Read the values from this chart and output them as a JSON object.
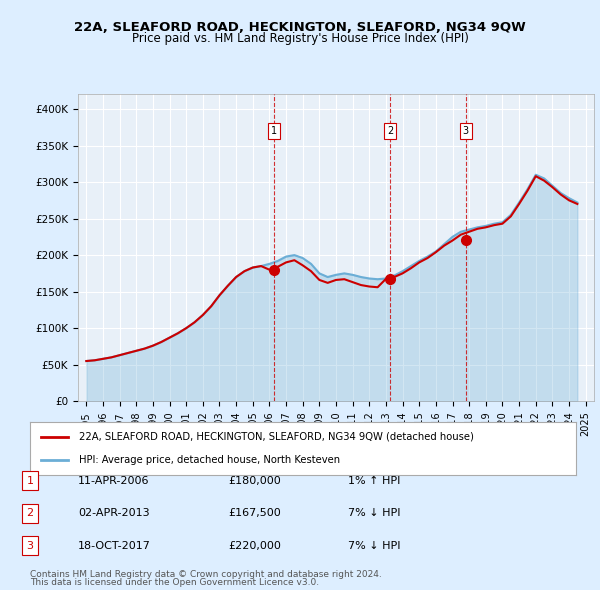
{
  "title": "22A, SLEAFORD ROAD, HECKINGTON, SLEAFORD, NG34 9QW",
  "subtitle": "Price paid vs. HM Land Registry's House Price Index (HPI)",
  "property_label": "22A, SLEAFORD ROAD, HECKINGTON, SLEAFORD, NG34 9QW (detached house)",
  "hpi_label": "HPI: Average price, detached house, North Kesteven",
  "footer1": "Contains HM Land Registry data © Crown copyright and database right 2024.",
  "footer2": "This data is licensed under the Open Government Licence v3.0.",
  "transactions": [
    {
      "num": 1,
      "date": "11-APR-2006",
      "price": 180000,
      "date_x": 2006.27,
      "rel": "1% ↑ HPI"
    },
    {
      "num": 2,
      "date": "02-APR-2013",
      "price": 167500,
      "date_x": 2013.25,
      "rel": "7% ↓ HPI"
    },
    {
      "num": 3,
      "date": "18-OCT-2017",
      "price": 220000,
      "date_x": 2017.8,
      "rel": "7% ↓ HPI"
    }
  ],
  "hpi_color": "#6baed6",
  "price_color": "#cc0000",
  "bg_color": "#ddeeff",
  "plot_bg": "#e8f0f8",
  "grid_color": "#ffffff",
  "marker_color": "#cc0000",
  "dashed_color": "#cc0000",
  "ylim": [
    0,
    420000
  ],
  "yticks": [
    0,
    50000,
    100000,
    150000,
    200000,
    250000,
    300000,
    350000,
    400000
  ],
  "xlim_start": 1994.5,
  "xlim_end": 2025.5,
  "hpi_data": {
    "years": [
      1995,
      1995.5,
      1996,
      1996.5,
      1997,
      1997.5,
      1998,
      1998.5,
      1999,
      1999.5,
      2000,
      2000.5,
      2001,
      2001.5,
      2002,
      2002.5,
      2003,
      2003.5,
      2004,
      2004.5,
      2005,
      2005.5,
      2006,
      2006.5,
      2007,
      2007.5,
      2008,
      2008.5,
      2009,
      2009.5,
      2010,
      2010.5,
      2011,
      2011.5,
      2012,
      2012.5,
      2013,
      2013.5,
      2014,
      2014.5,
      2015,
      2015.5,
      2016,
      2016.5,
      2017,
      2017.5,
      2018,
      2018.5,
      2019,
      2019.5,
      2020,
      2020.5,
      2021,
      2021.5,
      2022,
      2022.5,
      2023,
      2023.5,
      2024,
      2024.5
    ],
    "values": [
      55000,
      56000,
      58000,
      60000,
      63000,
      66000,
      69000,
      72000,
      76000,
      81000,
      87000,
      93000,
      100000,
      108000,
      118000,
      130000,
      145000,
      158000,
      170000,
      178000,
      183000,
      185000,
      188000,
      192000,
      198000,
      200000,
      196000,
      188000,
      175000,
      170000,
      173000,
      175000,
      173000,
      170000,
      168000,
      167000,
      168000,
      172000,
      178000,
      185000,
      192000,
      198000,
      205000,
      215000,
      225000,
      232000,
      235000,
      238000,
      240000,
      243000,
      245000,
      255000,
      272000,
      290000,
      310000,
      305000,
      295000,
      285000,
      278000,
      272000
    ]
  },
  "price_data": {
    "years": [
      1995,
      1995.5,
      1996,
      1996.5,
      1997,
      1997.5,
      1998,
      1998.5,
      1999,
      1999.5,
      2000,
      2000.5,
      2001,
      2001.5,
      2002,
      2002.5,
      2003,
      2003.5,
      2004,
      2004.5,
      2005,
      2005.5,
      2006,
      2006.5,
      2007,
      2007.5,
      2008,
      2008.5,
      2009,
      2009.5,
      2010,
      2010.5,
      2011,
      2011.5,
      2012,
      2012.5,
      2013,
      2013.5,
      2014,
      2014.5,
      2015,
      2015.5,
      2016,
      2016.5,
      2017,
      2017.5,
      2018,
      2018.5,
      2019,
      2019.5,
      2020,
      2020.5,
      2021,
      2021.5,
      2022,
      2022.5,
      2023,
      2023.5,
      2024,
      2024.5
    ],
    "values": [
      55000,
      56000,
      58000,
      60000,
      63000,
      66000,
      69000,
      72000,
      76000,
      81000,
      87000,
      93000,
      100000,
      108000,
      118000,
      130000,
      145000,
      158000,
      170000,
      178000,
      183000,
      185000,
      180000,
      184000,
      190000,
      193000,
      186000,
      178000,
      166000,
      162000,
      166000,
      167000,
      163000,
      159000,
      157000,
      156000,
      167500,
      170000,
      175000,
      182000,
      190000,
      196000,
      204000,
      213000,
      220000,
      228000,
      232000,
      236000,
      238000,
      241000,
      243000,
      253000,
      270000,
      288000,
      308000,
      302000,
      293000,
      283000,
      275000,
      270000
    ]
  }
}
